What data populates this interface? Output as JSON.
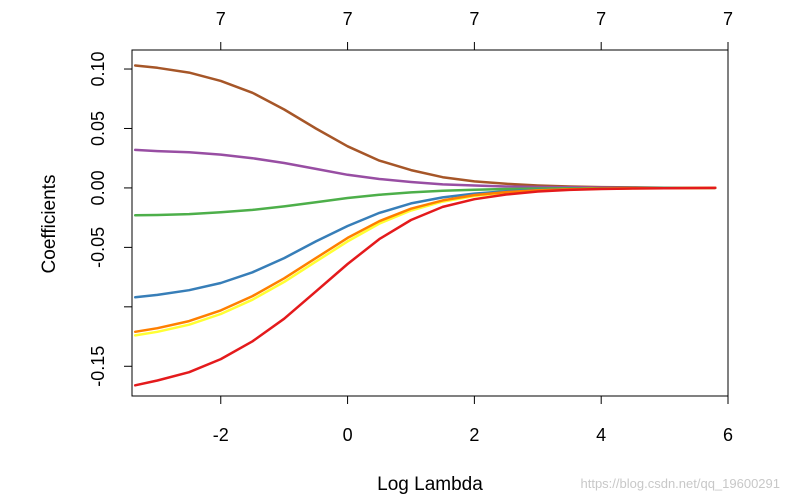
{
  "watermark": "https://blog.csdn.net/qq_19600291",
  "chart_data": {
    "type": "line",
    "title": "",
    "xlabel": "Log Lambda",
    "ylabel": "Coefficients",
    "xlim": [
      -3.4,
      6.0
    ],
    "ylim": [
      -0.175,
      0.116
    ],
    "x_ticks": [
      -2,
      0,
      2,
      4,
      6
    ],
    "x_tick_labels": [
      "-2",
      "0",
      "2",
      "4",
      "6"
    ],
    "y_ticks": [
      0.1,
      0.05,
      0.0,
      -0.05,
      -0.1,
      -0.15
    ],
    "y_tick_labels": [
      "0.10",
      "0.05",
      "0.00",
      "-0.05",
      "",
      "-0.15"
    ],
    "top_axis": {
      "ticks": [
        -2,
        0,
        2,
        4,
        6
      ],
      "labels": [
        "7",
        "7",
        "7",
        "7",
        "7"
      ]
    },
    "grid": false,
    "legend": "none",
    "series": [
      {
        "color": "#A65628",
        "x": [
          -3.35,
          -3,
          -2.5,
          -2,
          -1.5,
          -1,
          -0.5,
          0,
          0.5,
          1,
          1.5,
          2,
          2.5,
          3,
          3.5,
          4,
          4.5,
          5,
          5.8
        ],
        "values": [
          0.103,
          0.101,
          0.097,
          0.09,
          0.08,
          0.066,
          0.05,
          0.035,
          0.023,
          0.015,
          0.009,
          0.0055,
          0.0035,
          0.002,
          0.0012,
          0.0007,
          0.0004,
          0.0002,
          0.0
        ]
      },
      {
        "color": "#984EA3",
        "x": [
          -3.35,
          -3,
          -2.5,
          -2,
          -1.5,
          -1,
          -0.5,
          0,
          0.5,
          1,
          1.5,
          2,
          2.5,
          3,
          3.5,
          4,
          4.5,
          5,
          5.8
        ],
        "values": [
          0.032,
          0.031,
          0.03,
          0.028,
          0.025,
          0.021,
          0.016,
          0.011,
          0.0075,
          0.005,
          0.003,
          0.002,
          0.0012,
          0.0008,
          0.0005,
          0.0003,
          0.0002,
          0.0001,
          0.0
        ]
      },
      {
        "color": "#4DAF4A",
        "x": [
          -3.35,
          -3,
          -2.5,
          -2,
          -1.5,
          -1,
          -0.5,
          0,
          0.5,
          1,
          1.5,
          2,
          2.5,
          3,
          3.5,
          4,
          4.5,
          5,
          5.8
        ],
        "values": [
          -0.023,
          -0.0228,
          -0.022,
          -0.0205,
          -0.0185,
          -0.0155,
          -0.012,
          -0.0085,
          -0.0058,
          -0.0038,
          -0.0024,
          -0.0015,
          -0.0009,
          -0.0005,
          -0.0003,
          -0.0002,
          -0.0001,
          0.0,
          0.0
        ]
      },
      {
        "color": "#377EB8",
        "x": [
          -3.35,
          -3,
          -2.5,
          -2,
          -1.5,
          -1,
          -0.5,
          0,
          0.5,
          1,
          1.5,
          2,
          2.5,
          3,
          3.5,
          4,
          4.5,
          5,
          5.8
        ],
        "values": [
          -0.092,
          -0.09,
          -0.086,
          -0.08,
          -0.071,
          -0.059,
          -0.045,
          -0.032,
          -0.021,
          -0.013,
          -0.008,
          -0.0048,
          -0.0028,
          -0.0017,
          -0.001,
          -0.0006,
          -0.0003,
          -0.0002,
          0.0
        ]
      },
      {
        "color": "#FFFF33",
        "x": [
          -3.35,
          -3,
          -2.5,
          -2,
          -1.5,
          -1,
          -0.5,
          0,
          0.5,
          1,
          1.5,
          2,
          2.5,
          3,
          3.5,
          4,
          4.5,
          5,
          5.8
        ],
        "values": [
          -0.124,
          -0.121,
          -0.115,
          -0.106,
          -0.094,
          -0.079,
          -0.062,
          -0.045,
          -0.03,
          -0.019,
          -0.0115,
          -0.0068,
          -0.0039,
          -0.0022,
          -0.0013,
          -0.0007,
          -0.0004,
          -0.0002,
          0.0
        ]
      },
      {
        "color": "#FF7F00",
        "x": [
          -3.35,
          -3,
          -2.5,
          -2,
          -1.5,
          -1,
          -0.5,
          0,
          0.5,
          1,
          1.5,
          2,
          2.5,
          3,
          3.5,
          4,
          4.5,
          5,
          5.8
        ],
        "values": [
          -0.121,
          -0.118,
          -0.112,
          -0.103,
          -0.091,
          -0.076,
          -0.059,
          -0.042,
          -0.028,
          -0.0175,
          -0.0105,
          -0.006,
          -0.0035,
          -0.002,
          -0.0011,
          -0.0006,
          -0.0003,
          -0.0002,
          0.0
        ]
      },
      {
        "color": "#E41A1C",
        "x": [
          -3.35,
          -3,
          -2.5,
          -2,
          -1.5,
          -1,
          -0.5,
          0,
          0.5,
          1,
          1.5,
          2,
          2.5,
          3,
          3.5,
          4,
          4.5,
          5,
          5.8
        ],
        "values": [
          -0.166,
          -0.162,
          -0.155,
          -0.144,
          -0.129,
          -0.11,
          -0.087,
          -0.064,
          -0.043,
          -0.027,
          -0.016,
          -0.0095,
          -0.0055,
          -0.003,
          -0.0017,
          -0.0009,
          -0.0005,
          -0.0002,
          0.0
        ]
      }
    ]
  }
}
